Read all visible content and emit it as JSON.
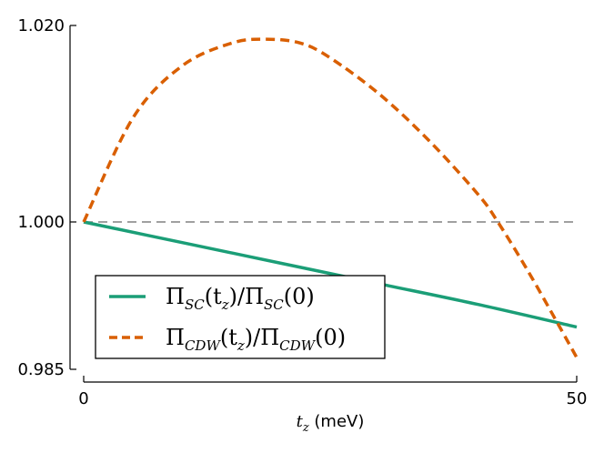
{
  "chart_data": {
    "type": "line",
    "title": "",
    "xlabel": {
      "symbol": "t",
      "sub": "z",
      "unit": " (meV)"
    },
    "ylabel": "",
    "xlim": [
      0,
      50
    ],
    "ylim": [
      0.985,
      1.02
    ],
    "x_ticks": [
      "0",
      "50"
    ],
    "y_ticks": [
      "0.985",
      "1.000",
      "1.020"
    ],
    "x_tick_values": [
      0,
      50
    ],
    "y_tick_values": [
      0.985,
      1.0,
      1.02
    ],
    "grid": false,
    "legend_position": "lower-left",
    "reference_line": {
      "y": 1.0,
      "color": "#808080",
      "style": "dashed"
    },
    "series": [
      {
        "name": "Π_SC(t_z)/Π_SC(0)",
        "legend": {
          "main": "Π",
          "sub": "SC",
          "mid": "(t",
          "sub2": "z",
          "tail": ")/Π",
          "sub3": "SC",
          "end": "(0)"
        },
        "color": "#1b9e77",
        "style": "solid",
        "x": [
          0,
          10,
          20,
          30,
          40,
          50
        ],
        "y": [
          1.0,
          0.9979,
          0.9958,
          0.9937,
          0.9916,
          0.9893
        ]
      },
      {
        "name": "Π_CDW(t_z)/Π_CDW(0)",
        "legend": {
          "main": "Π",
          "sub": "CDW",
          "mid": "(t",
          "sub2": "z",
          "tail": ")/Π",
          "sub3": "CDW",
          "end": "(0)"
        },
        "color": "#d95f02",
        "style": "dashed",
        "x": [
          0,
          5,
          10,
          15,
          18.5,
          22,
          25,
          30,
          35,
          40,
          42,
          45,
          48,
          50
        ],
        "y": [
          1.0,
          1.0106,
          1.0159,
          1.0182,
          1.0186,
          1.0182,
          1.0167,
          1.013,
          1.0083,
          1.0028,
          1.0,
          0.9951,
          0.9898,
          0.9862
        ]
      }
    ]
  }
}
